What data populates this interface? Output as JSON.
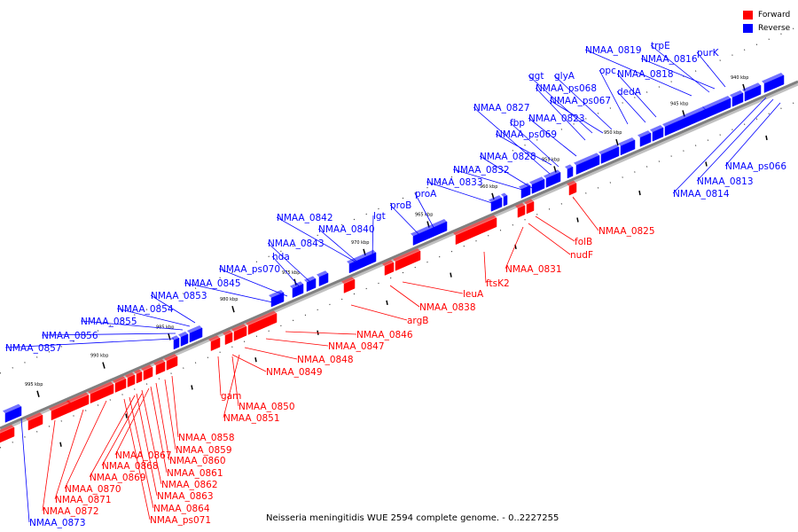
{
  "caption": "Neisseria meningitidis WUE 2594 complete genome. - 0..2227255",
  "legend": [
    {
      "label": "Forward",
      "color": "#ff0000"
    },
    {
      "label": "Reverse",
      "color": "#0000ff"
    }
  ],
  "colors": {
    "forward": "#ff0000",
    "reverse": "#0000ff",
    "backbone": "#808080"
  },
  "ticks": [
    "940 kbp",
    "945 kbp",
    "950 kbp",
    "955 kbp",
    "960 kbp",
    "965 kbp",
    "970 kbp",
    "975 kbp",
    "980 kbp",
    "985 kbp",
    "990 kbp",
    "995 kbp"
  ],
  "reverse_genes": [
    "NMAA_0819",
    "trpE",
    "NMAA_0816",
    "purK",
    "ggt",
    "glyA",
    "opc",
    "NMAA_0818",
    "NMAA_ps068",
    "dedA",
    "NMAA_0827",
    "NMAA_ps067",
    "fbp",
    "NMAA_0823",
    "NMAA_ps069",
    "NMAA_0828",
    "NMAA_0832",
    "NMAA_0833",
    "proA",
    "proB",
    "lgt",
    "NMAA_0842",
    "NMAA_0840",
    "hda",
    "NMAA_0843",
    "NMAA_ps070",
    "NMAA_0845",
    "NMAA_0853",
    "NMAA_0854",
    "NMAA_0855",
    "NMAA_0856",
    "NMAA_0857",
    "NMAA_ps066",
    "NMAA_0813",
    "NMAA_0814",
    "NMAA_0873"
  ],
  "forward_genes": [
    "NMAA_0825",
    "folB",
    "nudF",
    "NMAA_0831",
    "ftsK2",
    "leuA",
    "NMAA_0838",
    "argB",
    "NMAA_0846",
    "NMAA_0847",
    "NMAA_0848",
    "NMAA_0849",
    "gam",
    "NMAA_0850",
    "NMAA_0851",
    "NMAA_0858",
    "NMAA_0859",
    "NMAA_0867",
    "NMAA_0860",
    "NMAA_0868",
    "NMAA_0861",
    "NMAA_0869",
    "NMAA_0862",
    "NMAA_0870",
    "NMAA_0863",
    "NMAA_0871",
    "NMAA_0864",
    "NMAA_0872",
    "NMAA_ps071"
  ]
}
